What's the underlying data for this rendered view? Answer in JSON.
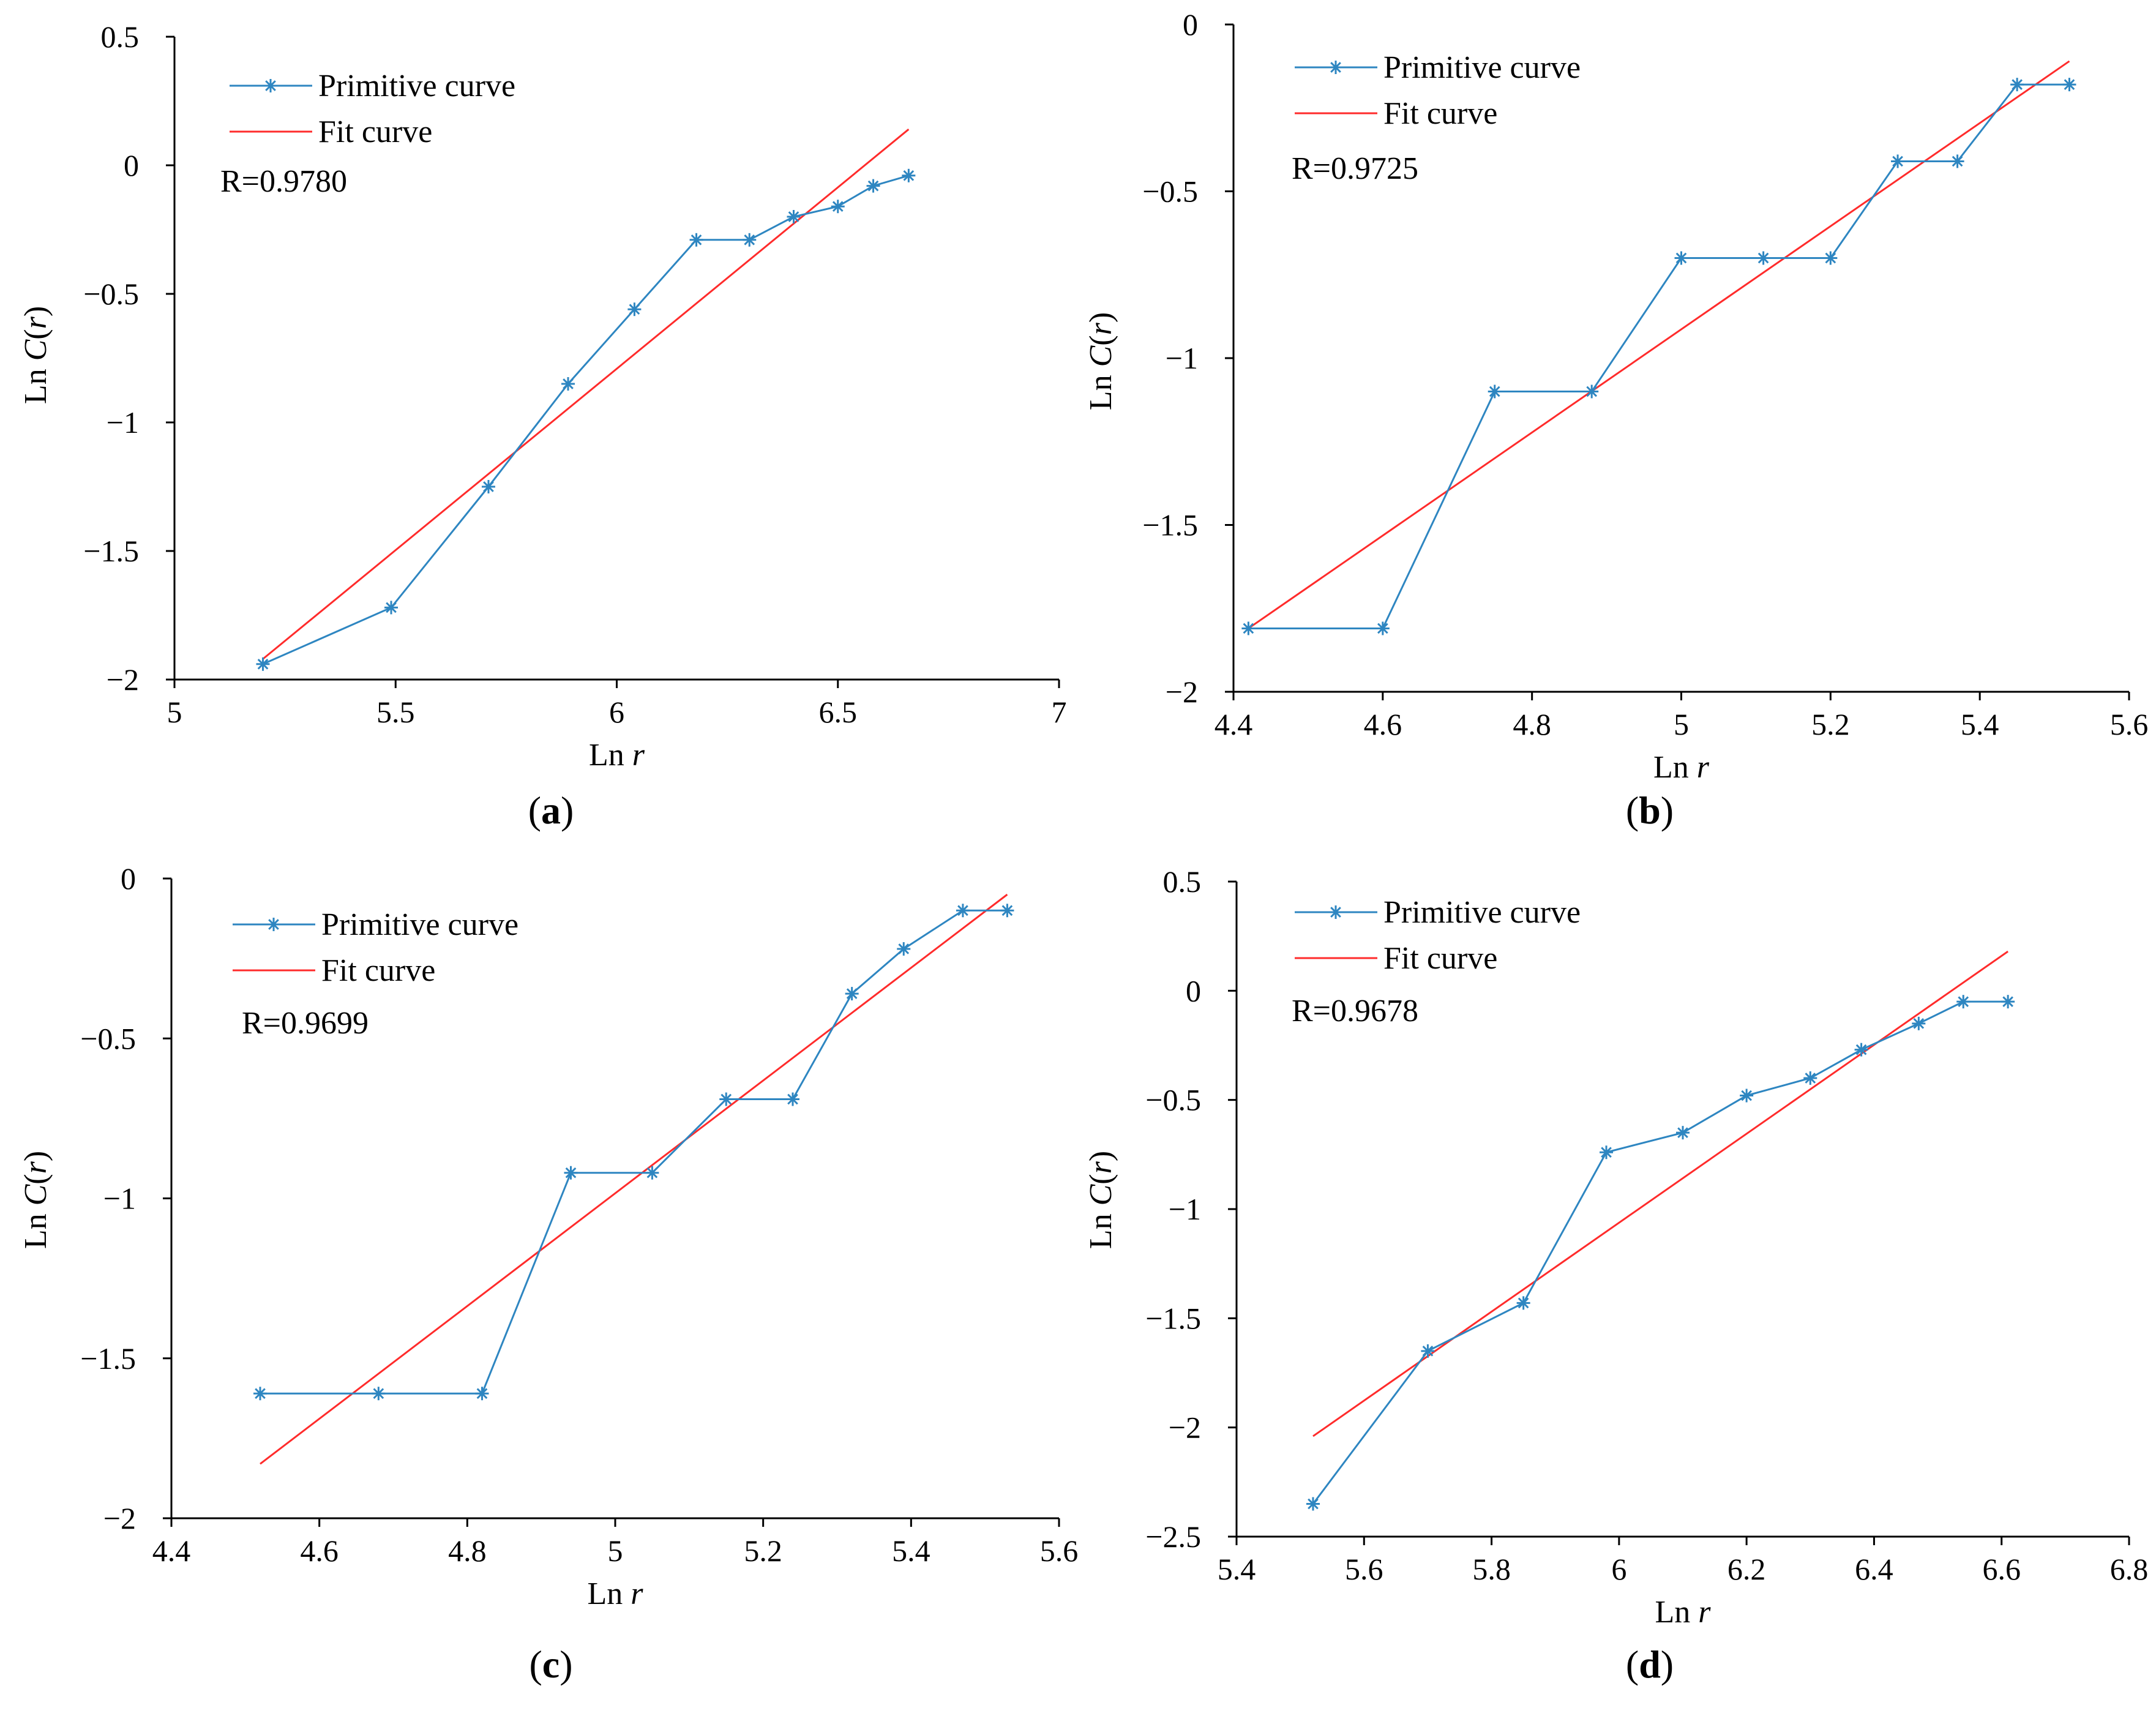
{
  "figure": {
    "colors": {
      "primitive": "#2E86C1",
      "fit": "#FF2B2B",
      "axis": "#000000"
    },
    "legend_labels": {
      "primitive": "Primitive curve",
      "fit": "Fit curve"
    },
    "axis_text": {
      "y_prefix": "Ln ",
      "y_italic": "C",
      "y_paren_open": "(",
      "y_var": "r",
      "y_paren_close": ")",
      "x_prefix": "Ln ",
      "x_var": "r"
    }
  },
  "chart_data": [
    {
      "id": "a",
      "type": "line",
      "caption": {
        "open": "(",
        "letter": "a",
        "close": ")"
      },
      "r_label": "R=0.9780",
      "xlabel": "Ln r",
      "ylabel": "Ln C(r)",
      "xlim": [
        5,
        7
      ],
      "ylim": [
        -2,
        0.5
      ],
      "xticks": [
        5,
        5.5,
        6,
        6.5,
        7
      ],
      "xtick_labels": [
        "5",
        "5.5",
        "6",
        "6.5",
        "7"
      ],
      "yticks": [
        -2,
        -1.5,
        -1,
        -0.5,
        0,
        0.5
      ],
      "ytick_labels": [
        "−2",
        "−1.5",
        "−1",
        "−0.5",
        "0",
        "0.5"
      ],
      "series": [
        {
          "name": "Primitive curve",
          "x": [
            5.2,
            5.49,
            5.71,
            5.89,
            6.04,
            6.18,
            6.3,
            6.4,
            6.5,
            6.58,
            6.66
          ],
          "y": [
            -1.94,
            -1.72,
            -1.25,
            -0.85,
            -0.56,
            -0.29,
            -0.29,
            -0.2,
            -0.16,
            -0.08,
            -0.04
          ]
        },
        {
          "name": "Fit curve",
          "x": [
            5.2,
            6.66
          ],
          "y": [
            -1.92,
            0.14
          ]
        }
      ]
    },
    {
      "id": "b",
      "type": "line",
      "caption": {
        "open": "(",
        "letter": "b",
        "close": ")"
      },
      "r_label": "R=0.9725",
      "xlabel": "Ln r",
      "ylabel": "Ln C(r)",
      "xlim": [
        4.4,
        5.6
      ],
      "ylim": [
        -2,
        0
      ],
      "xticks": [
        4.4,
        4.6,
        4.8,
        5,
        5.2,
        5.4,
        5.6
      ],
      "xtick_labels": [
        "4.4",
        "4.6",
        "4.8",
        "5",
        "5.2",
        "5.4",
        "5.6"
      ],
      "yticks": [
        -2,
        -1.5,
        -1,
        -0.5,
        0
      ],
      "ytick_labels": [
        "−2",
        "−1.5",
        "−1",
        "−0.5",
        "0"
      ],
      "series": [
        {
          "name": "Primitive curve",
          "x": [
            4.42,
            4.6,
            4.75,
            4.88,
            5.0,
            5.11,
            5.2,
            5.29,
            5.37,
            5.45,
            5.52
          ],
          "y": [
            -1.81,
            -1.81,
            -1.1,
            -1.1,
            -0.7,
            -0.7,
            -0.7,
            -0.41,
            -0.41,
            -0.18,
            -0.18
          ]
        },
        {
          "name": "Fit curve",
          "x": [
            4.42,
            5.52
          ],
          "y": [
            -1.81,
            -0.11
          ]
        }
      ]
    },
    {
      "id": "c",
      "type": "line",
      "caption": {
        "open": "(",
        "letter": "c",
        "close": ")"
      },
      "r_label": "R=0.9699",
      "xlabel": "Ln r",
      "ylabel": "Ln C(r)",
      "xlim": [
        4.4,
        5.6
      ],
      "ylim": [
        -2,
        0
      ],
      "xticks": [
        4.4,
        4.6,
        4.8,
        5,
        5.2,
        5.4,
        5.6
      ],
      "xtick_labels": [
        "4.4",
        "4.6",
        "4.8",
        "5",
        "5.2",
        "5.4",
        "5.6"
      ],
      "yticks": [
        -2,
        -1.5,
        -1,
        -0.5,
        0
      ],
      "ytick_labels": [
        "−2",
        "−1.5",
        "−1",
        "−0.5",
        "0"
      ],
      "series": [
        {
          "name": "Primitive curve",
          "x": [
            4.52,
            4.68,
            4.82,
            4.94,
            5.05,
            5.15,
            5.24,
            5.32,
            5.39,
            5.47,
            5.53
          ],
          "y": [
            -1.61,
            -1.61,
            -1.61,
            -0.92,
            -0.92,
            -0.69,
            -0.69,
            -0.36,
            -0.22,
            -0.1,
            -0.1
          ]
        },
        {
          "name": "Fit curve",
          "x": [
            4.52,
            5.53
          ],
          "y": [
            -1.83,
            -0.05
          ]
        }
      ]
    },
    {
      "id": "d",
      "type": "line",
      "caption": {
        "open": "(",
        "letter": "d",
        "close": ")"
      },
      "r_label": "R=0.9678",
      "xlabel": "Ln r",
      "ylabel": "Ln C(r)",
      "xlim": [
        5.4,
        6.8
      ],
      "ylim": [
        -2.5,
        0.5
      ],
      "xticks": [
        5.4,
        5.6,
        5.8,
        6,
        6.2,
        6.4,
        6.6,
        6.8
      ],
      "xtick_labels": [
        "5.4",
        "5.6",
        "5.8",
        "6",
        "6.2",
        "6.4",
        "6.6",
        "6.8"
      ],
      "yticks": [
        -2.5,
        -2,
        -1.5,
        -1,
        -0.5,
        0,
        0.5
      ],
      "ytick_labels": [
        "−2.5",
        "−2",
        "−1.5",
        "−1",
        "−0.5",
        "0",
        "0.5"
      ],
      "series": [
        {
          "name": "Primitive curve",
          "x": [
            5.52,
            5.7,
            5.85,
            5.98,
            6.1,
            6.2,
            6.3,
            6.38,
            6.47,
            6.54,
            6.61
          ],
          "y": [
            -2.35,
            -1.65,
            -1.43,
            -0.74,
            -0.65,
            -0.48,
            -0.4,
            -0.27,
            -0.15,
            -0.05,
            -0.05
          ]
        },
        {
          "name": "Fit curve",
          "x": [
            5.52,
            6.61
          ],
          "y": [
            -2.04,
            0.18
          ]
        }
      ]
    }
  ]
}
